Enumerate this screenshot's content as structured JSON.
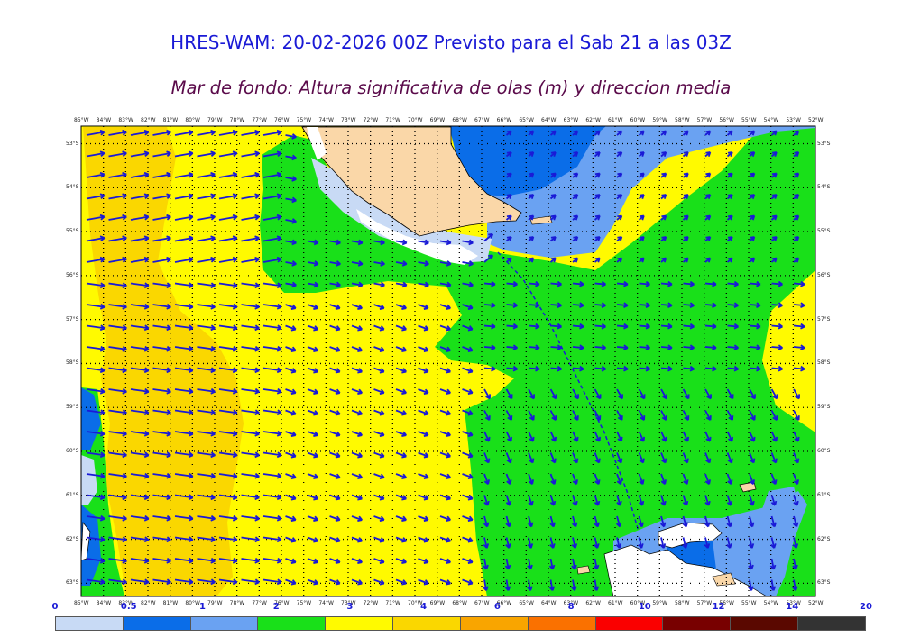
{
  "title": "HRES-WAM: 20-02-2026 00Z Previsto para el Sab 21 a las 03Z",
  "subtitle": "Mar de fondo: Altura significativa de olas (m) y direccion media",
  "chart_data": {
    "type": "heatmap",
    "variable": "Altura significativa de olas (m)",
    "lon_labels": [
      "85°W",
      "84°W",
      "83°W",
      "82°W",
      "81°W",
      "80°W",
      "79°W",
      "78°W",
      "77°W",
      "76°W",
      "75°W",
      "74°W",
      "73°W",
      "72°W",
      "71°W",
      "70°W",
      "69°W",
      "68°W",
      "67°W",
      "66°W",
      "65°W",
      "64°W",
      "63°W",
      "62°W",
      "61°W",
      "60°W",
      "59°W",
      "58°W",
      "57°W",
      "56°W",
      "55°W",
      "54°W",
      "53°W",
      "52°W"
    ],
    "lat_labels": [
      "53°S",
      "54°S",
      "55°S",
      "56°S",
      "57°S",
      "58°S",
      "59°S",
      "60°S",
      "61°S",
      "62°S",
      "63°S"
    ],
    "lon_range": [
      -85,
      -52
    ],
    "lat_range": [
      -63.3,
      -52.6
    ],
    "legend": {
      "labels": [
        "0",
        "0.5",
        "1",
        "2",
        "3",
        "4",
        "6",
        "8",
        "10",
        "12",
        "14",
        "20"
      ],
      "colors": [
        "#c8daf5",
        "#0a6de8",
        "#6aa2f2",
        "#19e019",
        "#fffa00",
        "#fad700",
        "#f9a500",
        "#fa7100",
        "#fa0000",
        "#780000",
        "#5a0800",
        "#333333"
      ]
    }
  },
  "colors": {
    "land": "#fad7a8",
    "ice": "#ffffff",
    "arrow": "#1a1ad6",
    "track": "#1a1ad6"
  }
}
